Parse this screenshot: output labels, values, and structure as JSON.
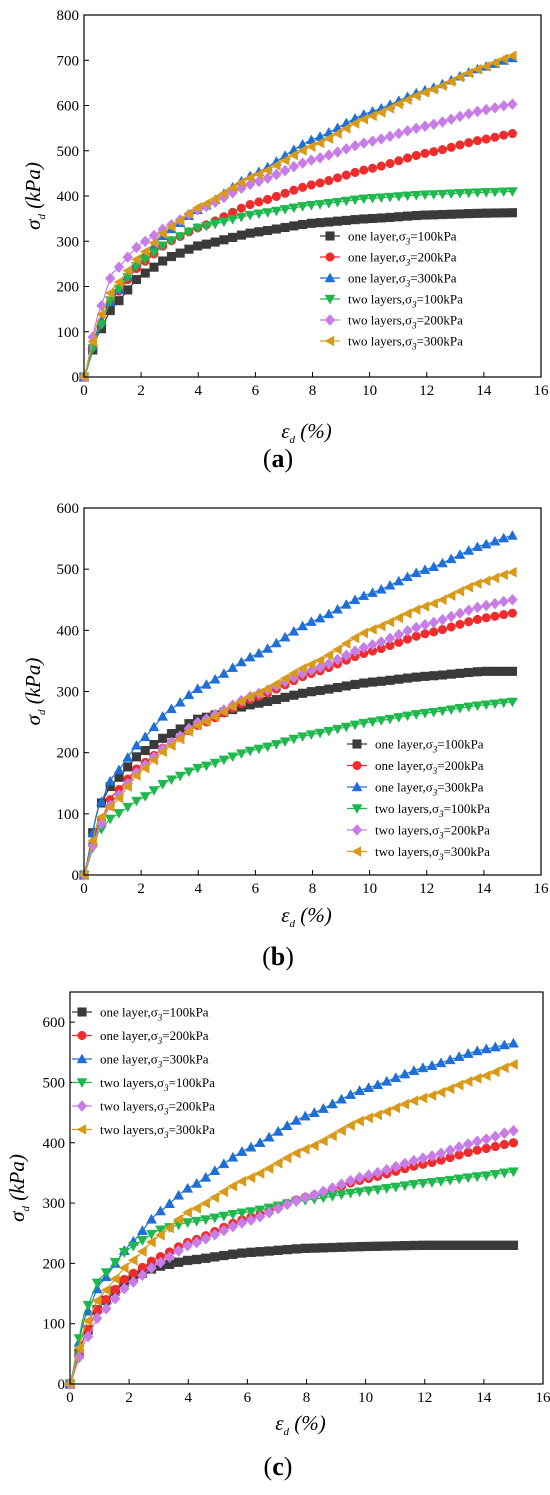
{
  "figure": {
    "x_symbol": "ε",
    "x_sub": "d",
    "x_unit": " (%)",
    "y_symbol": "σ",
    "y_sub": "d",
    "y_unit": " (kPa)"
  },
  "legend_labels": [
    {
      "pre": "one layer,σ",
      "sub": "3",
      "post": "=100kPa",
      "color": "#3a3a3a",
      "marker": "square"
    },
    {
      "pre": "one layer,σ",
      "sub": "3",
      "post": "=200kPa",
      "color": "#ef2b2b",
      "marker": "circle"
    },
    {
      "pre": "one layer,σ",
      "sub": "3",
      "post": "=300kPa",
      "color": "#1f6fd9",
      "marker": "triangle-up"
    },
    {
      "pre": "two layers,σ",
      "sub": "3",
      "post": "=100kPa",
      "color": "#1fb84d",
      "marker": "triangle-down"
    },
    {
      "pre": "two layers,σ",
      "sub": "3",
      "post": "=200kPa",
      "color": "#c77ce8",
      "marker": "diamond"
    },
    {
      "pre": "two layers,σ",
      "sub": "3",
      "post": "=300kPa",
      "color": "#d99a1a",
      "marker": "triangle-left"
    }
  ],
  "chart_data": [
    {
      "type": "line",
      "panel_label": "a",
      "xlim": [
        0,
        16
      ],
      "ylim": [
        0,
        800
      ],
      "xticks": [
        "0",
        "2",
        "4",
        "6",
        "8",
        "10",
        "12",
        "14",
        "16"
      ],
      "yticks": [
        "0",
        "100",
        "200",
        "300",
        "400",
        "500",
        "600",
        "700",
        "800"
      ],
      "legend_position": "lower-right",
      "series": [
        {
          "name": "one layer,σ3=100kPa",
          "points": [
            [
              0,
              0
            ],
            [
              0.5,
              95
            ],
            [
              1,
              155
            ],
            [
              2,
              225
            ],
            [
              3,
              265
            ],
            [
              4,
              290
            ],
            [
              6,
              320
            ],
            [
              8,
              340
            ],
            [
              10,
              350
            ],
            [
              12,
              358
            ],
            [
              14,
              362
            ],
            [
              15,
              363
            ]
          ]
        },
        {
          "name": "one layer,σ3=200kPa",
          "points": [
            [
              0,
              0
            ],
            [
              0.5,
              105
            ],
            [
              1,
              175
            ],
            [
              2,
              250
            ],
            [
              3,
              300
            ],
            [
              4,
              330
            ],
            [
              6,
              385
            ],
            [
              8,
              425
            ],
            [
              10,
              460
            ],
            [
              12,
              495
            ],
            [
              14,
              525
            ],
            [
              15,
              538
            ]
          ]
        },
        {
          "name": "one layer,σ3=300kPa",
          "points": [
            [
              0,
              0
            ],
            [
              0.5,
              110
            ],
            [
              1,
              175
            ],
            [
              2,
              265
            ],
            [
              3,
              325
            ],
            [
              4,
              370
            ],
            [
              6,
              450
            ],
            [
              8,
              525
            ],
            [
              10,
              585
            ],
            [
              12,
              635
            ],
            [
              14,
              685
            ],
            [
              15,
              705
            ]
          ]
        },
        {
          "name": "two layers,σ3=100kPa",
          "points": [
            [
              0,
              0
            ],
            [
              0.5,
              100
            ],
            [
              1,
              180
            ],
            [
              2,
              255
            ],
            [
              3,
              300
            ],
            [
              4,
              330
            ],
            [
              6,
              360
            ],
            [
              8,
              380
            ],
            [
              10,
              395
            ],
            [
              12,
              403
            ],
            [
              14,
              408
            ],
            [
              15,
              410
            ]
          ]
        },
        {
          "name": "two layers,σ3=200kPa",
          "points": [
            [
              0,
              0
            ],
            [
              0.5,
              140
            ],
            [
              1,
              230
            ],
            [
              2,
              295
            ],
            [
              3,
              335
            ],
            [
              4,
              370
            ],
            [
              6,
              430
            ],
            [
              8,
              480
            ],
            [
              10,
              520
            ],
            [
              12,
              555
            ],
            [
              14,
              590
            ],
            [
              15,
              603
            ]
          ]
        },
        {
          "name": "two layers,σ3=300kPa",
          "points": [
            [
              0,
              0
            ],
            [
              0.5,
              125
            ],
            [
              1,
              195
            ],
            [
              2,
              270
            ],
            [
              3,
              330
            ],
            [
              4,
              375
            ],
            [
              6,
              445
            ],
            [
              8,
              510
            ],
            [
              10,
              575
            ],
            [
              12,
              630
            ],
            [
              14,
              685
            ],
            [
              15,
              710
            ]
          ]
        }
      ]
    },
    {
      "type": "line",
      "panel_label": "b",
      "xlim": [
        0,
        16
      ],
      "ylim": [
        0,
        600
      ],
      "xticks": [
        "0",
        "2",
        "4",
        "6",
        "8",
        "10",
        "12",
        "14",
        "16"
      ],
      "yticks": [
        "0",
        "100",
        "200",
        "300",
        "400",
        "500",
        "600"
      ],
      "legend_position": "lower-right",
      "series": [
        {
          "name": "one layer,σ3=100kPa",
          "points": [
            [
              0,
              0
            ],
            [
              0.5,
              110
            ],
            [
              1,
              150
            ],
            [
              2,
              200
            ],
            [
              3,
              230
            ],
            [
              4,
              255
            ],
            [
              6,
              280
            ],
            [
              8,
              300
            ],
            [
              10,
              315
            ],
            [
              12,
              325
            ],
            [
              14,
              333
            ],
            [
              15,
              333
            ]
          ]
        },
        {
          "name": "one layer,σ3=200kPa",
          "points": [
            [
              0,
              0
            ],
            [
              0.5,
              80
            ],
            [
              1,
              130
            ],
            [
              2,
              180
            ],
            [
              3,
              215
            ],
            [
              4,
              245
            ],
            [
              6,
              290
            ],
            [
              8,
              330
            ],
            [
              10,
              365
            ],
            [
              12,
              395
            ],
            [
              14,
              420
            ],
            [
              15,
              428
            ]
          ]
        },
        {
          "name": "one layer,σ3=300kPa",
          "points": [
            [
              0,
              0
            ],
            [
              0.5,
              110
            ],
            [
              1,
              160
            ],
            [
              2,
              220
            ],
            [
              3,
              270
            ],
            [
              4,
              305
            ],
            [
              6,
              360
            ],
            [
              8,
              415
            ],
            [
              10,
              460
            ],
            [
              12,
              500
            ],
            [
              14,
              540
            ],
            [
              15,
              555
            ]
          ]
        },
        {
          "name": "two layers,σ3=100kPa",
          "points": [
            [
              0,
              0
            ],
            [
              0.5,
              70
            ],
            [
              1,
              95
            ],
            [
              2,
              125
            ],
            [
              3,
              155
            ],
            [
              4,
              175
            ],
            [
              6,
              205
            ],
            [
              8,
              230
            ],
            [
              10,
              250
            ],
            [
              12,
              265
            ],
            [
              14,
              278
            ],
            [
              15,
              283
            ]
          ]
        },
        {
          "name": "two layers,σ3=200kPa",
          "points": [
            [
              0,
              0
            ],
            [
              0.5,
              75
            ],
            [
              1,
              120
            ],
            [
              2,
              175
            ],
            [
              3,
              215
            ],
            [
              4,
              250
            ],
            [
              6,
              295
            ],
            [
              8,
              335
            ],
            [
              10,
              375
            ],
            [
              12,
              410
            ],
            [
              14,
              440
            ],
            [
              15,
              450
            ]
          ]
        },
        {
          "name": "two layers,σ3=300kPa",
          "points": [
            [
              0,
              0
            ],
            [
              0.5,
              90
            ],
            [
              1,
              115
            ],
            [
              2,
              170
            ],
            [
              3,
              210
            ],
            [
              4,
              245
            ],
            [
              6,
              295
            ],
            [
              8,
              345
            ],
            [
              10,
              400
            ],
            [
              12,
              440
            ],
            [
              14,
              480
            ],
            [
              15,
              495
            ]
          ]
        }
      ]
    },
    {
      "type": "line",
      "panel_label": "c",
      "xlim": [
        0,
        16
      ],
      "ylim": [
        0,
        650
      ],
      "xticks": [
        "0",
        "2",
        "4",
        "6",
        "8",
        "10",
        "12",
        "14",
        "16"
      ],
      "yticks": [
        "0",
        "100",
        "200",
        "300",
        "400",
        "500",
        "600"
      ],
      "legend_position": "upper-left",
      "series": [
        {
          "name": "one layer,σ3=100kPa",
          "points": [
            [
              0,
              0
            ],
            [
              0.5,
              80
            ],
            [
              1,
              130
            ],
            [
              2,
              175
            ],
            [
              3,
              195
            ],
            [
              4,
              205
            ],
            [
              6,
              218
            ],
            [
              8,
              225
            ],
            [
              10,
              228
            ],
            [
              12,
              230
            ],
            [
              14,
              230
            ],
            [
              15,
              230
            ]
          ]
        },
        {
          "name": "one layer,σ3=200kPa",
          "points": [
            [
              0,
              0
            ],
            [
              0.5,
              80
            ],
            [
              1,
              130
            ],
            [
              2,
              180
            ],
            [
              3,
              210
            ],
            [
              4,
              235
            ],
            [
              6,
              275
            ],
            [
              8,
              310
            ],
            [
              10,
              340
            ],
            [
              12,
              365
            ],
            [
              14,
              390
            ],
            [
              15,
              400
            ]
          ]
        },
        {
          "name": "one layer,σ3=300kPa",
          "points": [
            [
              0,
              0
            ],
            [
              0.5,
              110
            ],
            [
              1,
              165
            ],
            [
              2,
              230
            ],
            [
              3,
              285
            ],
            [
              4,
              325
            ],
            [
              6,
              390
            ],
            [
              8,
              445
            ],
            [
              10,
              490
            ],
            [
              12,
              525
            ],
            [
              14,
              555
            ],
            [
              15,
              565
            ]
          ]
        },
        {
          "name": "two layers,σ3=100kPa",
          "points": [
            [
              0,
              0
            ],
            [
              0.5,
              120
            ],
            [
              1,
              175
            ],
            [
              2,
              225
            ],
            [
              3,
              255
            ],
            [
              4,
              268
            ],
            [
              6,
              285
            ],
            [
              8,
              305
            ],
            [
              10,
              320
            ],
            [
              12,
              333
            ],
            [
              14,
              345
            ],
            [
              15,
              352
            ]
          ]
        },
        {
          "name": "two layers,σ3=200kPa",
          "points": [
            [
              0,
              0
            ],
            [
              0.5,
              70
            ],
            [
              1,
              115
            ],
            [
              2,
              165
            ],
            [
              3,
              200
            ],
            [
              4,
              230
            ],
            [
              6,
              270
            ],
            [
              8,
              310
            ],
            [
              10,
              345
            ],
            [
              12,
              375
            ],
            [
              14,
              405
            ],
            [
              15,
              420
            ]
          ]
        },
        {
          "name": "two layers,σ3=300kPa",
          "points": [
            [
              0,
              0
            ],
            [
              0.5,
              95
            ],
            [
              1,
              145
            ],
            [
              2,
              200
            ],
            [
              3,
              245
            ],
            [
              4,
              285
            ],
            [
              6,
              340
            ],
            [
              8,
              390
            ],
            [
              10,
              440
            ],
            [
              12,
              475
            ],
            [
              14,
              510
            ],
            [
              15,
              530
            ]
          ]
        }
      ]
    }
  ]
}
